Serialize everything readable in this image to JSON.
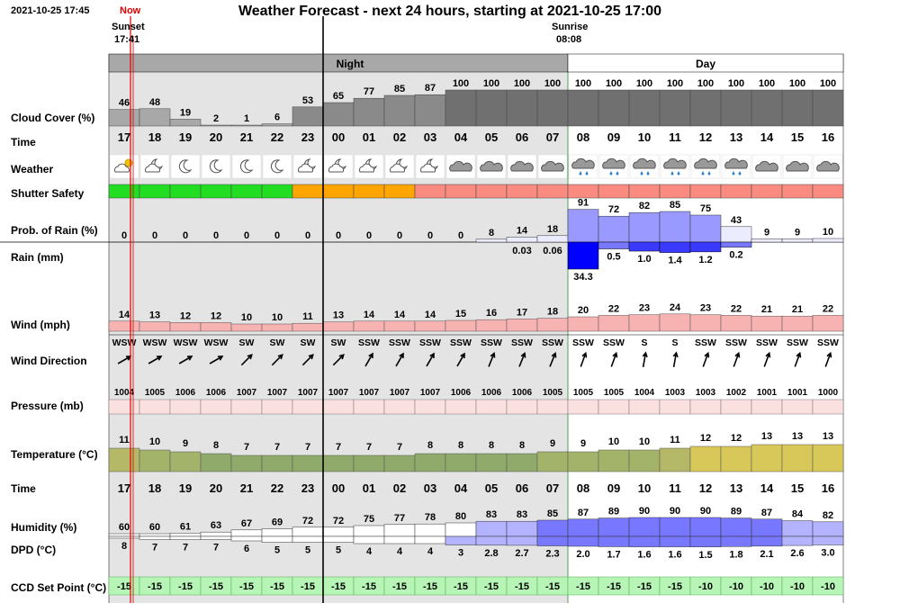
{
  "header": {
    "timestamp": "2021-10-25 17:45",
    "now_label": "Now",
    "title": "Weather Forecast - next 24 hours, starting at 2021-10-25 17:00",
    "sunset_label": "Sunset",
    "sunset_time": "17:41",
    "sunrise_label": "Sunrise",
    "sunrise_time": "08:08"
  },
  "bands": {
    "night": "Night",
    "day": "Day"
  },
  "row_labels": {
    "cloud": "Cloud Cover (%)",
    "time": "Time",
    "weather": "Weather",
    "shutter": "Shutter Safety",
    "prob": "Prob. of Rain (%)",
    "rain": "Rain (mm)",
    "wind": "Wind (mph)",
    "winddir": "Wind Direction",
    "pressure": "Pressure (mb)",
    "temp": "Temperature (°C)",
    "time2": "Time",
    "humidity": "Humidity (%)",
    "dpd": "DPD (°C)",
    "ccd": "CCD Set Point (°C)"
  },
  "hours": [
    "17",
    "18",
    "19",
    "20",
    "21",
    "22",
    "23",
    "00",
    "01",
    "02",
    "03",
    "04",
    "05",
    "06",
    "07",
    "08",
    "09",
    "10",
    "11",
    "12",
    "13",
    "14",
    "15",
    "16"
  ],
  "cloud_cover": [
    "46",
    "48",
    "19",
    "2",
    "1",
    "6",
    "53",
    "65",
    "77",
    "85",
    "87",
    "100",
    "100",
    "100",
    "100",
    "100",
    "100",
    "100",
    "100",
    "100",
    "100",
    "100",
    "100",
    "100"
  ],
  "weather_icons": [
    "partly-cloudy-sun-icon",
    "partly-cloudy-moon-icon",
    "moon-icon",
    "moon-icon",
    "moon-icon",
    "moon-icon",
    "partly-cloudy-moon-icon",
    "partly-cloudy-moon-icon",
    "partly-cloudy-moon-icon",
    "partly-cloudy-moon-icon",
    "partly-cloudy-moon-icon",
    "cloud-icon",
    "cloud-icon",
    "cloud-icon",
    "cloud-icon",
    "rain-cloud-icon",
    "rain-cloud-icon",
    "rain-cloud-icon",
    "rain-cloud-icon",
    "rain-cloud-icon",
    "rain-cloud-icon",
    "cloud-icon",
    "cloud-icon",
    "cloud-icon"
  ],
  "shutter_safety": [
    "safe",
    "safe",
    "safe",
    "safe",
    "safe",
    "safe",
    "marginal",
    "marginal",
    "marginal",
    "marginal",
    "unsafe",
    "unsafe",
    "unsafe",
    "unsafe",
    "unsafe",
    "unsafe",
    "unsafe",
    "unsafe",
    "unsafe",
    "unsafe",
    "unsafe",
    "unsafe",
    "unsafe",
    "unsafe"
  ],
  "shutter_colors": {
    "safe": "#22dd22",
    "marginal": "#ffa500",
    "unsafe": "#f98b80"
  },
  "prob_rain": [
    "0",
    "0",
    "0",
    "0",
    "0",
    "0",
    "0",
    "0",
    "0",
    "0",
    "0",
    "0",
    "8",
    "14",
    "18",
    "91",
    "72",
    "82",
    "85",
    "75",
    "43",
    "9",
    "9",
    "10"
  ],
  "rain_mm": [
    "",
    "",
    "",
    "",
    "",
    "",
    "",
    "",
    "",
    "",
    "",
    "",
    "",
    "0.03",
    "0.06",
    "34.3",
    "0.5",
    "1.0",
    "1.4",
    "1.2",
    "0.2",
    "",
    "",
    ""
  ],
  "wind": [
    "14",
    "13",
    "12",
    "12",
    "10",
    "10",
    "11",
    "13",
    "14",
    "14",
    "14",
    "15",
    "16",
    "17",
    "18",
    "20",
    "22",
    "23",
    "24",
    "23",
    "22",
    "21",
    "21",
    "22"
  ],
  "wind_dir": [
    "WSW",
    "WSW",
    "WSW",
    "WSW",
    "SW",
    "SW",
    "SW",
    "SW",
    "SSW",
    "SSW",
    "SSW",
    "SSW",
    "SSW",
    "SSW",
    "SSW",
    "SSW",
    "SSW",
    "S",
    "S",
    "SSW",
    "SSW",
    "SSW",
    "SSW",
    "SSW"
  ],
  "wind_angle": [
    60,
    60,
    60,
    60,
    45,
    45,
    45,
    45,
    30,
    30,
    30,
    30,
    22,
    22,
    22,
    20,
    20,
    10,
    10,
    20,
    20,
    20,
    20,
    20
  ],
  "pressure": [
    "1004",
    "1005",
    "1006",
    "1006",
    "1007",
    "1007",
    "1007",
    "1007",
    "1007",
    "1007",
    "1007",
    "1006",
    "1006",
    "1006",
    "1005",
    "1005",
    "1005",
    "1004",
    "1003",
    "1003",
    "1002",
    "1001",
    "1001",
    "1000"
  ],
  "temperature": [
    "11",
    "10",
    "9",
    "8",
    "7",
    "7",
    "7",
    "7",
    "7",
    "7",
    "8",
    "8",
    "8",
    "8",
    "9",
    "9",
    "10",
    "10",
    "11",
    "12",
    "12",
    "13",
    "13",
    "13"
  ],
  "humidity": [
    "60",
    "60",
    "61",
    "63",
    "67",
    "69",
    "72",
    "72",
    "75",
    "77",
    "78",
    "80",
    "83",
    "83",
    "85",
    "87",
    "89",
    "90",
    "90",
    "90",
    "89",
    "87",
    "84",
    "82"
  ],
  "dpd": [
    "8",
    "7",
    "7",
    "7",
    "6",
    "5",
    "5",
    "5",
    "4",
    "4",
    "4",
    "3",
    "2.8",
    "2.7",
    "2.3",
    "2.0",
    "1.7",
    "1.6",
    "1.6",
    "1.5",
    "1.8",
    "2.1",
    "2.6",
    "3.0"
  ],
  "ccd_setpoint": [
    "-15",
    "-15",
    "-15",
    "-15",
    "-15",
    "-15",
    "-15",
    "-15",
    "-15",
    "-15",
    "-15",
    "-15",
    "-15",
    "-15",
    "-15",
    "-15",
    "-15",
    "-15",
    "-15",
    "-10",
    "-10",
    "-10",
    "-10",
    "-10"
  ],
  "colors": {
    "cloud_band": "#a8a8a8",
    "cloud_dark": "#707070",
    "night_shade": "#e4e4e4",
    "now_line": "#dd0000",
    "rain_bar": "#0000ff",
    "prob_bar": "#9999ff",
    "wind_fill": "#f7b2b2",
    "pressure_fill": "#fbe0e0",
    "ccd_fill": "#b6f5b6"
  }
}
